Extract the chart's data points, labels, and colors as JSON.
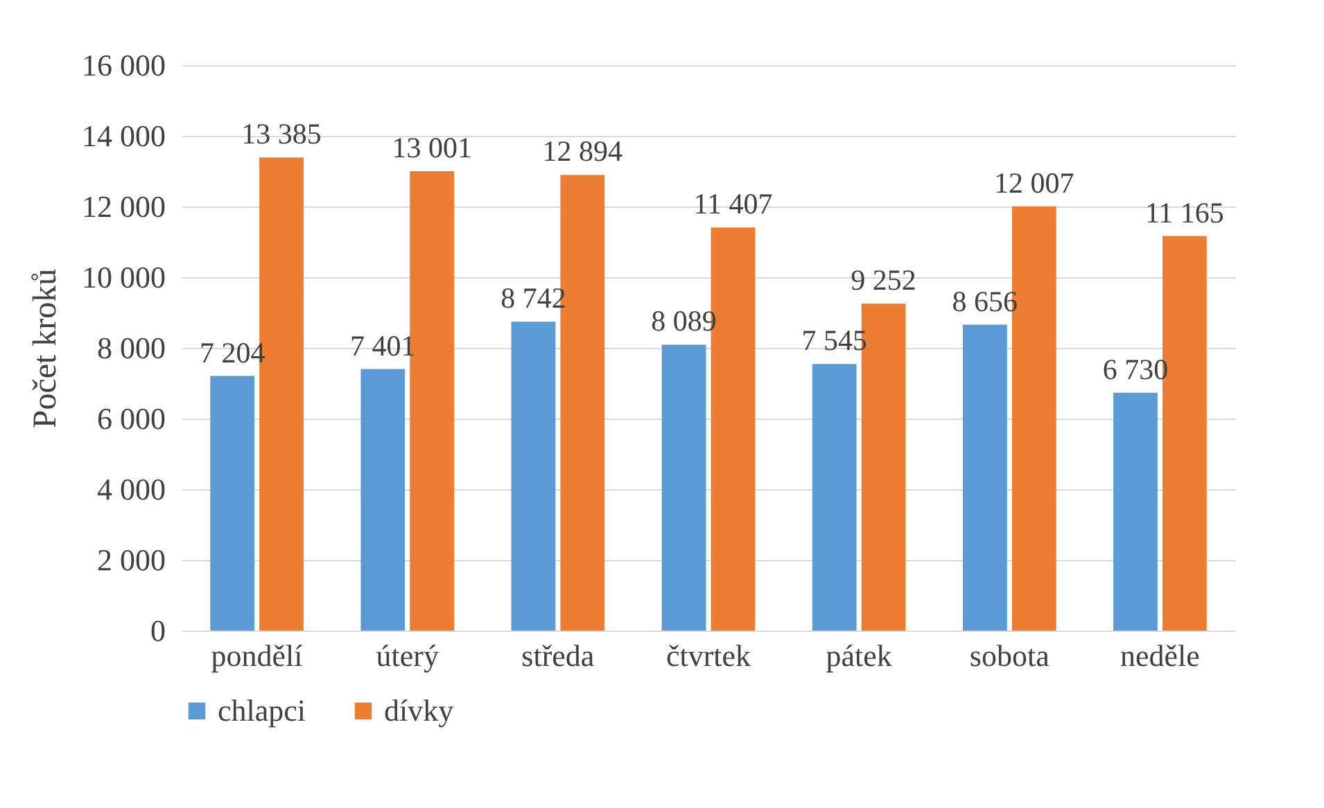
{
  "chart_data": {
    "type": "bar",
    "ylabel": "Počet kroků",
    "categories": [
      "pondělí",
      "úterý",
      "středa",
      "čtvrtek",
      "pátek",
      "sobota",
      "neděle"
    ],
    "series": [
      {
        "name": "chlapci",
        "color": "#5b9bd5",
        "values": [
          7204,
          7401,
          8742,
          8089,
          7545,
          8656,
          6730
        ],
        "value_labels": [
          "7 204",
          "7 401",
          "8 742",
          "8 089",
          "7 545",
          "8 656",
          "6 730"
        ]
      },
      {
        "name": "dívky",
        "color": "#ed7d31",
        "values": [
          13385,
          13001,
          12894,
          11407,
          9252,
          12007,
          11165
        ],
        "value_labels": [
          "13 385",
          "13 001",
          "12 894",
          "11 407",
          "9 252",
          "12 007",
          "11 165"
        ]
      }
    ],
    "ylim": [
      0,
      16000
    ],
    "yticks": [
      {
        "value": 0,
        "label": "0"
      },
      {
        "value": 2000,
        "label": "2 000"
      },
      {
        "value": 4000,
        "label": "4 000"
      },
      {
        "value": 6000,
        "label": "6 000"
      },
      {
        "value": 8000,
        "label": "8 000"
      },
      {
        "value": 10000,
        "label": "10 000"
      },
      {
        "value": 12000,
        "label": "12 000"
      },
      {
        "value": 14000,
        "label": "14 000"
      },
      {
        "value": 16000,
        "label": "16 000"
      }
    ],
    "grid": "y",
    "legend": "bottom"
  }
}
